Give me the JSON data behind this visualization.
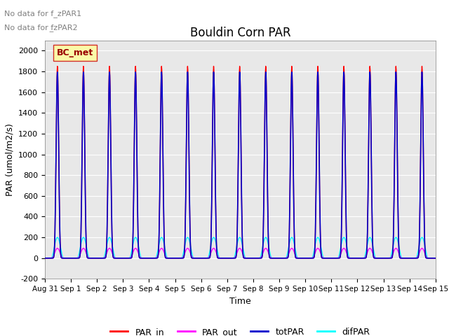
{
  "title": "Bouldin Corn PAR",
  "ylabel": "PAR (umol/m2/s)",
  "xlabel": "Time",
  "ylim": [
    -200,
    2100
  ],
  "annotation1": "No data for f_zPAR1",
  "annotation2": "No data for f̲zPAR2",
  "legend_label": "BC_met",
  "num_days": 15,
  "peak_value": 1850,
  "par_out_peak": 95,
  "difpar_peak": 200,
  "dawn": 0.26,
  "dusk": 0.7,
  "colors": {
    "PAR_in": "#ff0000",
    "PAR_out": "#ff00ff",
    "totPAR": "#0000cc",
    "difPAR": "#00ffff",
    "legend_box": "#ffff99",
    "legend_border": "#cc0000",
    "grid": "#ffffff",
    "background": "#e8e8e8"
  },
  "tick_labels": [
    "Aug 31",
    "Sep 1",
    "Sep 2",
    "Sep 3",
    "Sep 4",
    "Sep 5",
    "Sep 6",
    "Sep 7",
    "Sep 8",
    "Sep 9",
    "Sep 10",
    "Sep 11",
    "Sep 12",
    "Sep 13",
    "Sep 14",
    "Sep 15"
  ],
  "yticks": [
    -200,
    0,
    200,
    400,
    600,
    800,
    1000,
    1200,
    1400,
    1600,
    1800,
    2000
  ],
  "figsize": [
    6.4,
    4.8
  ],
  "dpi": 100
}
